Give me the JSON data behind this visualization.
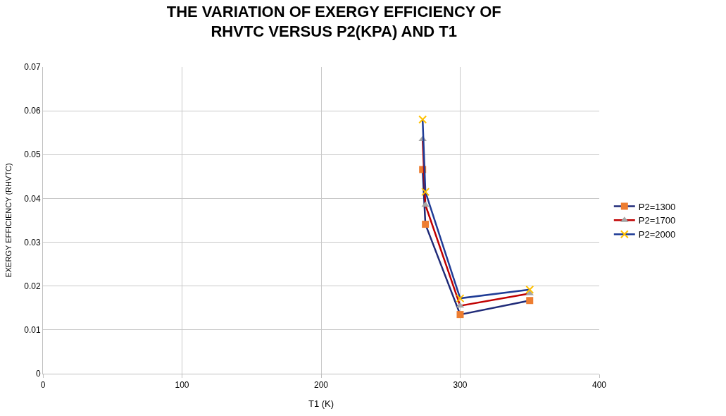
{
  "chart_data": {
    "type": "line",
    "title": "THE VARIATION OF EXERGY EFFICIENCY OF RHVTC VERSUS P2(KPA) AND T1",
    "xlabel": "T1 (K)",
    "ylabel": "EXERGY EFFICIENCY (RHVTC)",
    "x": [
      273,
      275,
      300,
      350
    ],
    "series": [
      {
        "name": "P2=1300",
        "color": "#1f2a78",
        "marker": "square",
        "colors": [
          "#ed7d31",
          "#ed7d31",
          "#ed7d31",
          "#ed7d31"
        ],
        "values": [
          0.0466,
          0.0341,
          0.0135,
          0.0167
        ]
      },
      {
        "name": "P2=1700",
        "color": "#c00000",
        "marker": "triangle",
        "colors": [
          "#a5a5a5",
          "#a5a5a5",
          "#a5a5a5",
          "#a5a5a5"
        ],
        "values": [
          0.0535,
          0.0385,
          0.0155,
          0.0183
        ]
      },
      {
        "name": "P2=2000",
        "color": "#1f3c96",
        "marker": "cross",
        "colors": [
          "#ffc000",
          "#ffc000",
          "#ffc000",
          "#ffc000"
        ],
        "values": [
          0.058,
          0.0415,
          0.0172,
          0.0192
        ]
      }
    ],
    "xlim": [
      0,
      400
    ],
    "xticks": [
      0,
      100,
      200,
      300,
      400
    ],
    "ylim": [
      0,
      0.07
    ],
    "yticks": [
      {
        "value": 0,
        "label": "0"
      },
      {
        "value": 0.01,
        "label": "0.01"
      },
      {
        "value": 0.02,
        "label": "0.02"
      },
      {
        "value": 0.03,
        "label": "0.03"
      },
      {
        "value": 0.04,
        "label": "0.04"
      },
      {
        "value": 0.05,
        "label": "0.05"
      },
      {
        "value": 0.06,
        "label": "0.06"
      },
      {
        "value": 0.07,
        "label": "0.07"
      }
    ],
    "grid": true,
    "legend": "right",
    "line_style": "solid"
  }
}
